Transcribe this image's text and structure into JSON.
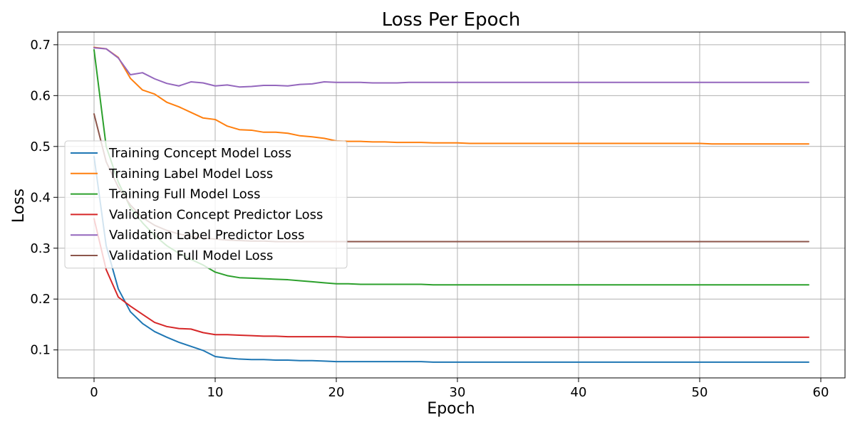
{
  "chart_data": {
    "type": "line",
    "title": "Loss Per Epoch",
    "xlabel": "Epoch",
    "ylabel": "Loss",
    "xlim": [
      -3,
      62
    ],
    "ylim": [
      0.045,
      0.725
    ],
    "xticks": [
      0,
      10,
      20,
      30,
      40,
      50,
      60
    ],
    "yticks": [
      0.1,
      0.2,
      0.3,
      0.4,
      0.5,
      0.6,
      0.7
    ],
    "ytick_labels": [
      "0.1",
      "0.2",
      "0.3",
      "0.4",
      "0.5",
      "0.6",
      "0.7"
    ],
    "grid": true,
    "legend_position": "center-left",
    "x": [
      0,
      1,
      2,
      3,
      4,
      5,
      6,
      7,
      8,
      9,
      10,
      11,
      12,
      13,
      14,
      15,
      16,
      17,
      18,
      19,
      20,
      21,
      22,
      23,
      24,
      25,
      26,
      27,
      28,
      29,
      30,
      31,
      32,
      33,
      34,
      35,
      36,
      37,
      38,
      39,
      40,
      41,
      42,
      43,
      44,
      45,
      46,
      47,
      48,
      49,
      50,
      51,
      52,
      53,
      54,
      55,
      56,
      57,
      58,
      59
    ],
    "series": [
      {
        "name": "Training Concept Model Loss",
        "color": "#1f77b4",
        "values": [
          0.48,
          0.305,
          0.22,
          0.175,
          0.152,
          0.136,
          0.125,
          0.115,
          0.107,
          0.099,
          0.087,
          0.084,
          0.082,
          0.081,
          0.081,
          0.08,
          0.08,
          0.079,
          0.079,
          0.078,
          0.077,
          0.077,
          0.077,
          0.077,
          0.077,
          0.077,
          0.077,
          0.077,
          0.076,
          0.076,
          0.076,
          0.076,
          0.076,
          0.076,
          0.076,
          0.076,
          0.076,
          0.076,
          0.076,
          0.076,
          0.076,
          0.076,
          0.076,
          0.076,
          0.076,
          0.076,
          0.076,
          0.076,
          0.076,
          0.076,
          0.076,
          0.076,
          0.076,
          0.076,
          0.076,
          0.076,
          0.076,
          0.076,
          0.076,
          0.076
        ]
      },
      {
        "name": "Training Label Model Loss",
        "color": "#ff7f0e",
        "values": [
          0.695,
          0.692,
          0.675,
          0.634,
          0.611,
          0.603,
          0.587,
          0.578,
          0.567,
          0.556,
          0.553,
          0.54,
          0.533,
          0.532,
          0.528,
          0.528,
          0.526,
          0.521,
          0.519,
          0.516,
          0.511,
          0.51,
          0.51,
          0.509,
          0.509,
          0.508,
          0.508,
          0.508,
          0.507,
          0.507,
          0.507,
          0.506,
          0.506,
          0.506,
          0.506,
          0.506,
          0.506,
          0.506,
          0.506,
          0.506,
          0.506,
          0.506,
          0.506,
          0.506,
          0.506,
          0.506,
          0.506,
          0.506,
          0.506,
          0.506,
          0.506,
          0.505,
          0.505,
          0.505,
          0.505,
          0.505,
          0.505,
          0.505,
          0.505,
          0.505
        ]
      },
      {
        "name": "Training Full Model Loss",
        "color": "#2ca02c",
        "values": [
          0.69,
          0.5,
          0.43,
          0.38,
          0.35,
          0.325,
          0.305,
          0.29,
          0.278,
          0.267,
          0.253,
          0.246,
          0.242,
          0.241,
          0.24,
          0.239,
          0.238,
          0.236,
          0.234,
          0.232,
          0.23,
          0.23,
          0.229,
          0.229,
          0.229,
          0.229,
          0.229,
          0.229,
          0.228,
          0.228,
          0.228,
          0.228,
          0.228,
          0.228,
          0.228,
          0.228,
          0.228,
          0.228,
          0.228,
          0.228,
          0.228,
          0.228,
          0.228,
          0.228,
          0.228,
          0.228,
          0.228,
          0.228,
          0.228,
          0.228,
          0.228,
          0.228,
          0.228,
          0.228,
          0.228,
          0.228,
          0.228,
          0.228,
          0.228,
          0.228
        ]
      },
      {
        "name": "Validation Concept Predictor Loss",
        "color": "#d62728",
        "values": [
          0.358,
          0.258,
          0.204,
          0.186,
          0.17,
          0.154,
          0.146,
          0.142,
          0.141,
          0.134,
          0.13,
          0.13,
          0.129,
          0.128,
          0.127,
          0.127,
          0.126,
          0.126,
          0.126,
          0.126,
          0.126,
          0.125,
          0.125,
          0.125,
          0.125,
          0.125,
          0.125,
          0.125,
          0.125,
          0.125,
          0.125,
          0.125,
          0.125,
          0.125,
          0.125,
          0.125,
          0.125,
          0.125,
          0.125,
          0.125,
          0.125,
          0.125,
          0.125,
          0.125,
          0.125,
          0.125,
          0.125,
          0.125,
          0.125,
          0.125,
          0.125,
          0.125,
          0.125,
          0.125,
          0.125,
          0.125,
          0.125,
          0.125,
          0.125,
          0.125
        ]
      },
      {
        "name": "Validation Label Predictor Loss",
        "color": "#9467bd",
        "values": [
          0.694,
          0.692,
          0.674,
          0.641,
          0.645,
          0.633,
          0.624,
          0.619,
          0.627,
          0.625,
          0.619,
          0.621,
          0.617,
          0.618,
          0.62,
          0.62,
          0.619,
          0.622,
          0.623,
          0.627,
          0.626,
          0.626,
          0.626,
          0.625,
          0.625,
          0.625,
          0.626,
          0.626,
          0.626,
          0.626,
          0.626,
          0.626,
          0.626,
          0.626,
          0.626,
          0.626,
          0.626,
          0.626,
          0.626,
          0.626,
          0.626,
          0.626,
          0.626,
          0.626,
          0.626,
          0.626,
          0.626,
          0.626,
          0.626,
          0.626,
          0.626,
          0.626,
          0.626,
          0.626,
          0.626,
          0.626,
          0.626,
          0.626,
          0.626,
          0.626
        ]
      },
      {
        "name": "Validation Full Model Loss",
        "color": "#8c564b",
        "values": [
          0.564,
          0.47,
          0.42,
          0.385,
          0.36,
          0.345,
          0.335,
          0.328,
          0.323,
          0.32,
          0.318,
          0.316,
          0.315,
          0.314,
          0.314,
          0.313,
          0.313,
          0.313,
          0.313,
          0.313,
          0.313,
          0.313,
          0.313,
          0.313,
          0.313,
          0.313,
          0.313,
          0.313,
          0.313,
          0.313,
          0.313,
          0.313,
          0.313,
          0.313,
          0.313,
          0.313,
          0.313,
          0.313,
          0.313,
          0.313,
          0.313,
          0.313,
          0.313,
          0.313,
          0.313,
          0.313,
          0.313,
          0.313,
          0.313,
          0.313,
          0.313,
          0.313,
          0.313,
          0.313,
          0.313,
          0.313,
          0.313,
          0.313,
          0.313,
          0.313
        ]
      }
    ]
  }
}
